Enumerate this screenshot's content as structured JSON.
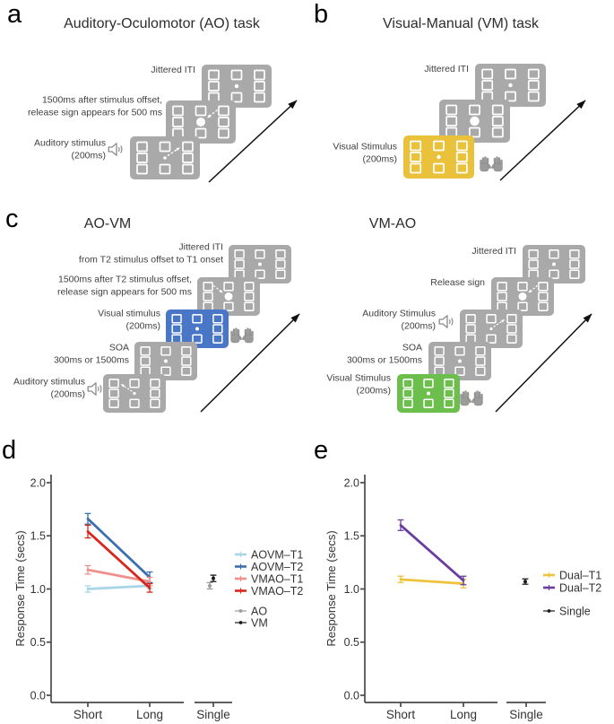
{
  "panels": {
    "a": {
      "label": "a",
      "title": "Auditory-Oculomotor (AO) task",
      "steps": [
        {
          "lines": [
            "Auditory stimulus",
            "(200ms)"
          ],
          "screen": "gray",
          "display": "saccade-arrow-ne",
          "icon": "speaker-icon"
        },
        {
          "lines": [
            "1500ms after stimulus offset,",
            "release sign appears for 500 ms"
          ],
          "screen": "gray",
          "display": "release-dot-arrow-ne"
        },
        {
          "lines": [
            "Jittered ITI"
          ],
          "screen": "gray",
          "display": "fixation-dot"
        }
      ]
    },
    "b": {
      "label": "b",
      "title": "Visual-Manual (VM) task",
      "steps": [
        {
          "lines": [
            "Visual Stimulus",
            "(200ms)"
          ],
          "screen": "yellow",
          "display": "fixation-dot",
          "icon": "hands-icon"
        },
        {
          "lines": [],
          "screen": "gray",
          "display": "release-dot"
        },
        {
          "lines": [
            "Jittered ITI"
          ],
          "screen": "gray",
          "display": "fixation-dot"
        }
      ]
    },
    "c": {
      "label": "c",
      "sequences": {
        "left": {
          "title": "AO-VM",
          "steps": [
            {
              "lines": [
                "Auditory stimulus",
                "(200ms)"
              ],
              "screen": "gray",
              "display": "saccade-arrow-nw",
              "icon": "speaker-icon"
            },
            {
              "lines": [
                "SOA",
                "300ms or 1500ms"
              ],
              "screen": "gray",
              "display": "fixation-dot"
            },
            {
              "lines": [
                "Visual stimulus",
                "(200ms)"
              ],
              "screen": "blue",
              "display": "fixation-dot",
              "icon": "hands-icon"
            },
            {
              "lines": [
                "1500ms after T2 stimulus offset,",
                "release sign appears for 500 ms"
              ],
              "screen": "gray",
              "display": "release-dot-arrow-nw"
            },
            {
              "lines": [
                "Jittered ITI",
                "from T2 stimulus offset to T1 onset"
              ],
              "screen": "gray",
              "display": "fixation-dot"
            }
          ]
        },
        "right": {
          "title": "VM-AO",
          "steps": [
            {
              "lines": [
                "Visual Stimulus",
                "(200ms)"
              ],
              "screen": "green",
              "display": "fixation-dot",
              "icon": "hands-icon"
            },
            {
              "lines": [
                "SOA",
                "300ms or 1500ms"
              ],
              "screen": "gray",
              "display": "fixation-dot"
            },
            {
              "lines": [
                "Auditory Stimulus",
                "(200ms)"
              ],
              "screen": "gray",
              "display": "saccade-arrow-ne",
              "icon": "speaker-icon"
            },
            {
              "lines": [
                "Release sign"
              ],
              "screen": "gray",
              "display": "release-dot-arrow-ne"
            },
            {
              "lines": [
                "Jittered ITI"
              ],
              "screen": "gray",
              "display": "fixation-dot"
            }
          ]
        }
      }
    },
    "d": {
      "label": "d"
    },
    "e": {
      "label": "e"
    }
  },
  "colors": {
    "screens": {
      "gray": "#a9a9a9",
      "yellow": "#e9c13b",
      "blue": "#4a76c8",
      "green": "#6dbf4d"
    },
    "screen_marks": "#ffffff",
    "timeline_arrow": "#111111",
    "axis": "#4a4a4a",
    "icon_gray": "#8a8a8a"
  },
  "chart_data": [
    {
      "panel": "d",
      "type": "line",
      "title": "",
      "xlabel": "",
      "ylabel": "Response Time (secs)",
      "categories": [
        "Short",
        "Long"
      ],
      "single_category": "Single",
      "ylim": [
        0.0,
        2.0
      ],
      "yticks": [
        0.0,
        0.5,
        1.0,
        1.5,
        2.0
      ],
      "ytick_labels": [
        "0.0",
        "0.5",
        "1.0",
        "1.5",
        "2.0"
      ],
      "grid": false,
      "legend_position": "right",
      "series": [
        {
          "name": "AOVM–T1",
          "color": "#a8d6e8",
          "values": [
            1.0,
            1.03
          ],
          "errors": [
            0.03,
            0.03
          ]
        },
        {
          "name": "AOVM–T2",
          "color": "#3a6fb2",
          "values": [
            1.66,
            1.11
          ],
          "errors": [
            0.05,
            0.05
          ]
        },
        {
          "name": "VMAO–T1",
          "color": "#f0908d",
          "values": [
            1.18,
            1.07
          ],
          "errors": [
            0.04,
            0.04
          ]
        },
        {
          "name": "VMAO–T2",
          "color": "#d9261c",
          "values": [
            1.54,
            1.01
          ],
          "errors": [
            0.06,
            0.04
          ]
        }
      ],
      "single_points": [
        {
          "name": "AO",
          "color": "#9b9b9b",
          "value": 1.03,
          "error": 0.03
        },
        {
          "name": "VM",
          "color": "#1a1a1a",
          "value": 1.1,
          "error": 0.03
        }
      ]
    },
    {
      "panel": "e",
      "type": "line",
      "title": "",
      "xlabel": "",
      "ylabel": "Response Time (secs)",
      "categories": [
        "Short",
        "Long"
      ],
      "single_category": "Single",
      "ylim": [
        0.0,
        2.0
      ],
      "yticks": [
        0.0,
        0.5,
        1.0,
        1.5,
        2.0
      ],
      "ytick_labels": [
        "0.0",
        "0.5",
        "1.0",
        "1.5",
        "2.0"
      ],
      "grid": false,
      "legend_position": "right",
      "series": [
        {
          "name": "Dual–T1",
          "color": "#efc23b",
          "values": [
            1.09,
            1.05
          ],
          "errors": [
            0.03,
            0.04
          ]
        },
        {
          "name": "Dual–T2",
          "color": "#6a3d9e",
          "values": [
            1.6,
            1.08
          ],
          "errors": [
            0.05,
            0.04
          ]
        }
      ],
      "single_points": [
        {
          "name": "Single",
          "color": "#1a1a1a",
          "value": 1.07,
          "error": 0.025
        }
      ]
    }
  ]
}
